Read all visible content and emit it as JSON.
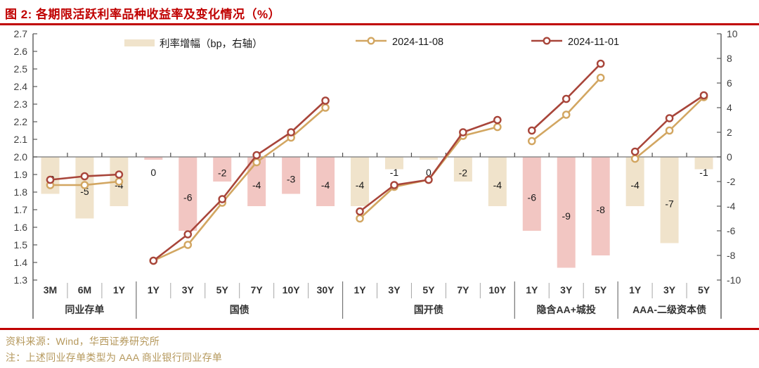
{
  "title": "图 2: 各期限活跃利率品种收益率及变化情况（%）",
  "legend": {
    "bar_label": "利率增幅（bp，右轴）",
    "series_1108_label": "2024-11-08",
    "series_1101_label": "2024-11-01"
  },
  "footer": {
    "source": "资料来源：Wind，华西证券研究所",
    "note": "注：上述同业存单类型为 AAA 商业银行同业存单"
  },
  "colors": {
    "title_red": "#c00000",
    "divider_red": "#c00000",
    "series_1108_gold": "#d2a661",
    "series_1101_red": "#a8453a",
    "bar_tan": "#f0e3cb",
    "bar_pink": "#f2c6c2",
    "axis_text": "#3f3f3f",
    "category_text": "#333333",
    "bar_label_text": "#1a1a1a",
    "footer_tan": "#b5985c",
    "axis_line": "#595959",
    "zero_line": "#8c8c8c",
    "tick_line": "#4d4d4d",
    "cell_divider": "#a6a6a6",
    "group_divider": "#737373"
  },
  "chart_data": {
    "type": "bar+line combo (bars = weekly change in bp on right axis, lines = yield % on left axis)",
    "title": "各期限活跃利率品种收益率及变化情况（%）",
    "legend_position": "top",
    "grid": false,
    "left_axis": {
      "min": 1.3,
      "max": 2.7,
      "step": 0.1
    },
    "right_axis": {
      "min": -10,
      "max": 10,
      "step": 2
    },
    "bar_series_name": "利率增幅（bp，右轴）",
    "series_names": [
      "2024-11-08",
      "2024-11-01"
    ],
    "groups": [
      {
        "label": "同业存单",
        "bar_color": "tan",
        "tenors": [
          "3M",
          "6M",
          "1Y"
        ],
        "change_bp": [
          -3,
          -5,
          -4
        ],
        "y_2024_11_08": [
          1.84,
          1.84,
          1.86
        ],
        "y_2024_11_01": [
          1.87,
          1.89,
          1.9
        ]
      },
      {
        "label": "国债",
        "bar_color": "pink",
        "tenors": [
          "1Y",
          "3Y",
          "5Y",
          "7Y",
          "10Y",
          "30Y"
        ],
        "change_bp": [
          0,
          -6,
          -2,
          -4,
          -3,
          -4
        ],
        "y_2024_11_08": [
          1.41,
          1.5,
          1.74,
          1.97,
          2.11,
          2.28
        ],
        "y_2024_11_01": [
          1.41,
          1.56,
          1.76,
          2.01,
          2.14,
          2.32
        ]
      },
      {
        "label": "国开债",
        "bar_color": "tan",
        "tenors": [
          "1Y",
          "3Y",
          "5Y",
          "7Y",
          "10Y"
        ],
        "change_bp": [
          -4,
          -1,
          0,
          -2,
          -4
        ],
        "y_2024_11_08": [
          1.65,
          1.83,
          1.87,
          2.12,
          2.17
        ],
        "y_2024_11_01": [
          1.69,
          1.84,
          1.87,
          2.14,
          2.21
        ]
      },
      {
        "label": "隐含AA+城投",
        "bar_color": "pink",
        "tenors": [
          "1Y",
          "3Y",
          "5Y"
        ],
        "change_bp": [
          -6,
          -9,
          -8
        ],
        "y_2024_11_08": [
          2.09,
          2.24,
          2.45
        ],
        "y_2024_11_01": [
          2.15,
          2.33,
          2.53
        ]
      },
      {
        "label": "AAA-二级资本债",
        "bar_color": "tan",
        "tenors": [
          "1Y",
          "3Y",
          "5Y"
        ],
        "change_bp": [
          -4,
          -7,
          -1
        ],
        "y_2024_11_08": [
          1.99,
          2.15,
          2.34
        ],
        "y_2024_11_01": [
          2.03,
          2.22,
          2.35
        ]
      }
    ]
  }
}
